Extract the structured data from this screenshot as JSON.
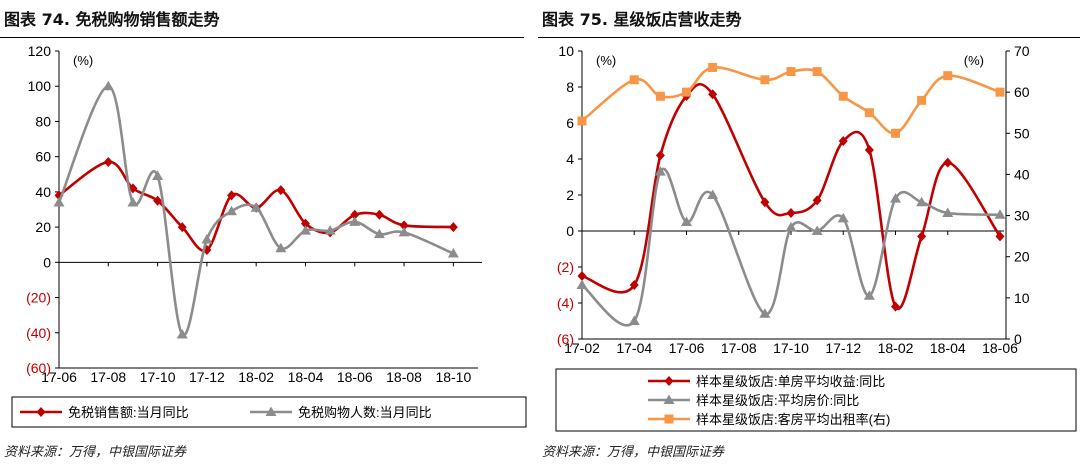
{
  "colors": {
    "red": "#C00000",
    "gray": "#8C8C8C",
    "orange": "#F79646",
    "axis": "#000000",
    "negative_tick": "#C00000"
  },
  "left_panel": {
    "title": "图表 74. 免税购物销售额走势",
    "source": "资料来源：万得，中银国际证券"
  },
  "right_panel": {
    "title": "图表 75. 星级饭店营收走势",
    "source": "资料来源：万得，中银国际证券"
  },
  "chart_data": [
    {
      "type": "line",
      "smooth": true,
      "title": "",
      "unit_label": "(%)",
      "ylim": [
        -60,
        120
      ],
      "yticks": [
        "(60)",
        "(40)",
        "(20)",
        "0",
        "20",
        "40",
        "60",
        "80",
        "100",
        "120"
      ],
      "x": [
        "17-06",
        "17-08",
        "17-09",
        "17-10",
        "17-11",
        "17-12",
        "18-01",
        "18-02",
        "18-03",
        "18-04",
        "18-05",
        "18-06",
        "18-07",
        "18-08",
        "18-10",
        "18-11"
      ],
      "xtick_labels": [
        "17-06",
        "17-08",
        "17-10",
        "17-12",
        "18-02",
        "18-04",
        "18-06",
        "18-08",
        "18-10"
      ],
      "legend_position": "bottom",
      "series": [
        {
          "name": "免税销售额:当月同比",
          "color": "#C00000",
          "marker": "diamond",
          "values": [
            38,
            57,
            42,
            35,
            20,
            7,
            38,
            31,
            41,
            22,
            17,
            27,
            27,
            21,
            20,
            null
          ]
        },
        {
          "name": "免税购物人数:当月同比",
          "color": "#8C8C8C",
          "marker": "triangle",
          "values": [
            34,
            100,
            34,
            49,
            -41,
            13,
            29,
            31,
            8,
            18,
            18,
            23,
            16,
            17,
            5,
            null
          ]
        }
      ]
    },
    {
      "type": "line",
      "smooth": true,
      "title": "",
      "unit_label_left": "(%)",
      "unit_label_right": "(%)",
      "ylim": [
        -6,
        10
      ],
      "yticks": [
        "(6)",
        "(4)",
        "(2)",
        "0",
        "2",
        "4",
        "6",
        "8",
        "10"
      ],
      "y2lim": [
        0,
        70
      ],
      "y2ticks": [
        "0",
        "10",
        "20",
        "30",
        "40",
        "50",
        "60",
        "70"
      ],
      "x": [
        "17-02",
        "17-04",
        "17-05",
        "17-06",
        "17-07",
        "17-09",
        "17-10",
        "17-11",
        "17-12",
        "18-01",
        "18-02",
        "18-03",
        "18-04",
        "18-06"
      ],
      "xtick_labels": [
        "17-02",
        "17-04",
        "17-06",
        "17-08",
        "17-10",
        "17-12",
        "18-02",
        "18-04",
        "18-06"
      ],
      "legend_position": "bottom",
      "series": [
        {
          "name": "样本星级饭店:单房平均收益:同比",
          "color": "#C00000",
          "marker": "diamond",
          "axis": "left",
          "values": [
            -2.5,
            -3.0,
            4.2,
            7.5,
            7.6,
            1.6,
            1.0,
            1.7,
            5.0,
            4.5,
            -4.2,
            -0.3,
            3.8,
            -0.3
          ]
        },
        {
          "name": "样本星级饭店:平均房价:同比",
          "color": "#8C8C8C",
          "marker": "triangle",
          "axis": "left",
          "values": [
            -3.0,
            -5.0,
            3.3,
            0.5,
            2.0,
            -4.6,
            0.2,
            0.0,
            0.7,
            -3.6,
            1.8,
            1.6,
            1.0,
            0.9
          ]
        },
        {
          "name": "样本星级饭店:客房平均出租率(右)",
          "color": "#F79646",
          "marker": "square",
          "axis": "right",
          "values": [
            53,
            63,
            59,
            60,
            66,
            63,
            65,
            65,
            59,
            55,
            50,
            58,
            64,
            60
          ]
        }
      ]
    }
  ]
}
